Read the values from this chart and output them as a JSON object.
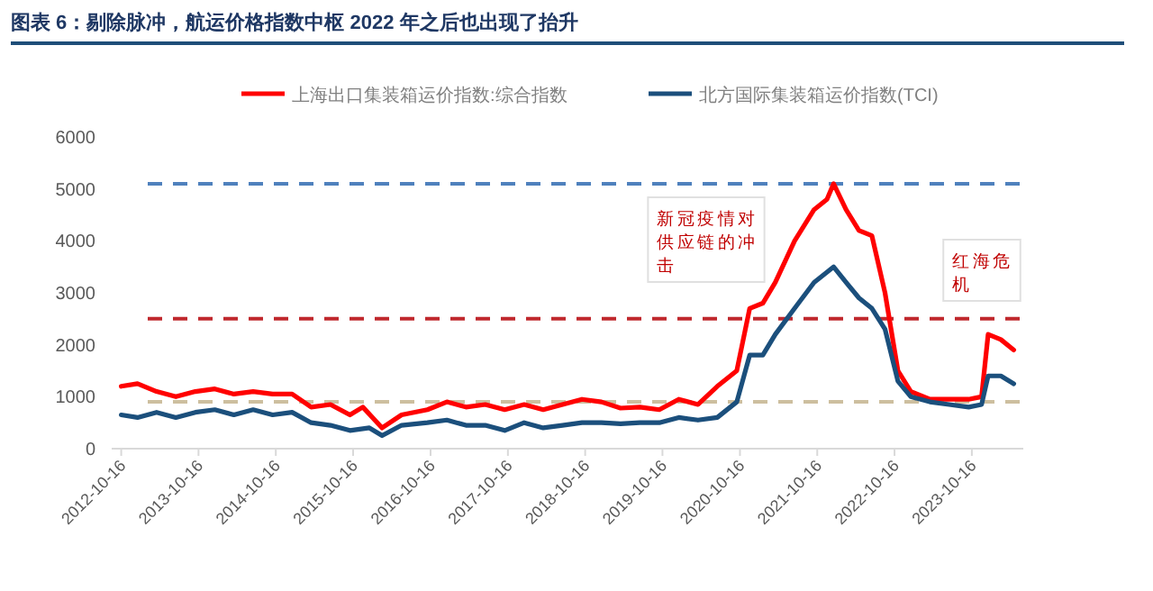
{
  "chart_data": {
    "type": "line",
    "title": "图表 6：剔除脉冲，航运价格指数中枢 2022 年之后也出现了抬升",
    "series": [
      {
        "name": "上海出口集装箱运价指数:综合指数",
        "color": "#ff0000",
        "x": [
          "2012-10-16",
          "2013-01",
          "2013-04",
          "2013-07",
          "2013-10",
          "2014-01",
          "2014-04",
          "2014-07",
          "2014-10",
          "2015-01",
          "2015-04",
          "2015-07",
          "2015-10",
          "2015-12",
          "2016-03",
          "2016-06",
          "2016-10",
          "2017-01",
          "2017-04",
          "2017-07",
          "2017-10",
          "2018-01",
          "2018-04",
          "2018-07",
          "2018-10",
          "2019-01",
          "2019-04",
          "2019-07",
          "2019-10",
          "2020-01",
          "2020-04",
          "2020-07",
          "2020-10",
          "2020-12",
          "2021-02",
          "2021-04",
          "2021-07",
          "2021-10",
          "2021-12",
          "2022-01",
          "2022-03",
          "2022-05",
          "2022-07",
          "2022-09",
          "2022-11",
          "2023-01",
          "2023-04",
          "2023-07",
          "2023-10",
          "2023-12",
          "2024-01",
          "2024-03",
          "2024-05"
        ],
        "values": [
          1200,
          1250,
          1100,
          1000,
          1100,
          1150,
          1050,
          1100,
          1050,
          1050,
          800,
          850,
          650,
          800,
          400,
          650,
          750,
          900,
          800,
          850,
          750,
          850,
          750,
          850,
          950,
          900,
          780,
          800,
          750,
          950,
          850,
          1200,
          1500,
          2700,
          2800,
          3200,
          4000,
          4600,
          4800,
          5100,
          4600,
          4200,
          4100,
          3000,
          1500,
          1100,
          950,
          950,
          950,
          1000,
          2200,
          2100,
          1900
        ]
      },
      {
        "name": "北方国际集装箱运价指数(TCI)",
        "color": "#1b4f7c",
        "x": [
          "2012-10-16",
          "2013-01",
          "2013-04",
          "2013-07",
          "2013-10",
          "2014-01",
          "2014-04",
          "2014-07",
          "2014-10",
          "2015-01",
          "2015-04",
          "2015-07",
          "2015-10",
          "2016-01",
          "2016-03",
          "2016-06",
          "2016-10",
          "2017-01",
          "2017-04",
          "2017-07",
          "2017-10",
          "2018-01",
          "2018-04",
          "2018-07",
          "2018-10",
          "2019-01",
          "2019-04",
          "2019-07",
          "2019-10",
          "2020-01",
          "2020-04",
          "2020-07",
          "2020-10",
          "2020-12",
          "2021-02",
          "2021-04",
          "2021-07",
          "2021-10",
          "2022-01",
          "2022-03",
          "2022-05",
          "2022-07",
          "2022-09",
          "2022-11",
          "2023-01",
          "2023-04",
          "2023-07",
          "2023-10",
          "2023-12",
          "2024-01",
          "2024-03",
          "2024-05"
        ],
        "values": [
          650,
          600,
          700,
          600,
          700,
          750,
          650,
          750,
          650,
          700,
          500,
          450,
          350,
          400,
          250,
          450,
          500,
          550,
          450,
          450,
          350,
          500,
          400,
          450,
          500,
          500,
          480,
          500,
          500,
          600,
          550,
          600,
          900,
          1800,
          1800,
          2200,
          2700,
          3200,
          3500,
          3200,
          2900,
          2700,
          2300,
          1300,
          1000,
          900,
          850,
          800,
          850,
          1400,
          1400,
          1250
        ]
      }
    ],
    "ylim": [
      0,
      6000
    ],
    "yticks": [
      0,
      1000,
      2000,
      3000,
      4000,
      5000,
      6000
    ],
    "xlim": [
      "2012-09-01",
      "2024-06-15"
    ],
    "xticks": [
      "2012-10-16",
      "2013-10-16",
      "2014-10-16",
      "2015-10-16",
      "2016-10-16",
      "2017-10-16",
      "2018-10-16",
      "2019-10-16",
      "2020-10-16",
      "2021-10-16",
      "2022-10-16",
      "2023-10-16"
    ],
    "ref_lines": [
      {
        "axis": "y",
        "value": 5100,
        "color": "#4f81bd",
        "line_style": "dashed"
      },
      {
        "axis": "y",
        "value": 2500,
        "color": "#c0282d",
        "line_style": "dashed"
      },
      {
        "axis": "y",
        "value": 900,
        "color": "#cdbf9f",
        "line_style": "dashed"
      }
    ],
    "annotations": [
      "新冠疫情对供应链的冲击",
      "红海危机"
    ],
    "legend": "top",
    "grid": false,
    "line_style": "solid"
  }
}
